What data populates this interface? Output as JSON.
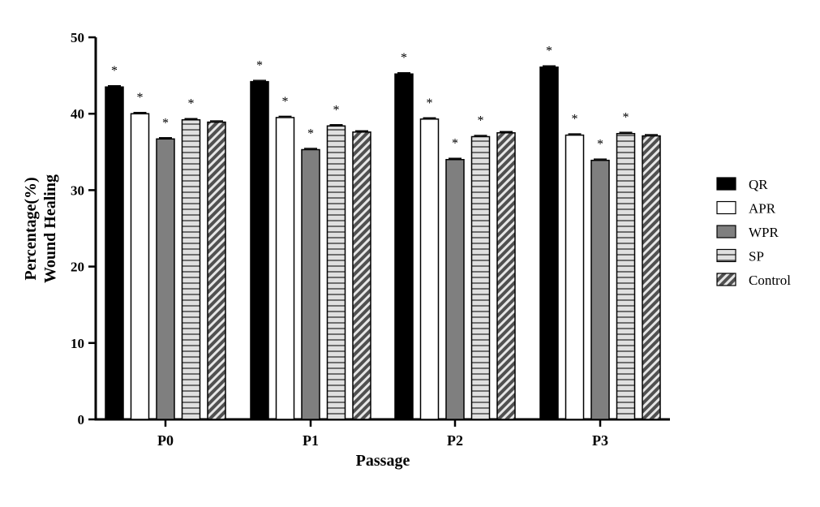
{
  "chart_data": {
    "type": "bar",
    "xlabel": "Passage",
    "ylabel_lines": [
      "Percentage(%)",
      "Wound Healing"
    ],
    "ylim": [
      0,
      50
    ],
    "yticks": [
      0,
      10,
      20,
      30,
      40,
      50
    ],
    "categories": [
      "P0",
      "P1",
      "P2",
      "P3"
    ],
    "series": [
      {
        "name": "QR",
        "values": [
          43.5,
          44.2,
          45.2,
          46.1
        ],
        "significant": [
          true,
          true,
          true,
          true
        ],
        "fill": "#000000",
        "pattern": "solid"
      },
      {
        "name": "APR",
        "values": [
          40.0,
          39.5,
          39.3,
          37.2
        ],
        "significant": [
          true,
          true,
          true,
          true
        ],
        "fill": "#ffffff",
        "pattern": "solid"
      },
      {
        "name": "WPR",
        "values": [
          36.7,
          35.3,
          34.0,
          33.9
        ],
        "significant": [
          true,
          true,
          true,
          true
        ],
        "fill": "#7f7f7f",
        "pattern": "solid"
      },
      {
        "name": "SP",
        "values": [
          39.2,
          38.4,
          37.0,
          37.4
        ],
        "significant": [
          true,
          true,
          true,
          true
        ],
        "fill": "#d6d6d6",
        "pattern": "horizontal-lines"
      },
      {
        "name": "Control",
        "values": [
          38.9,
          37.6,
          37.5,
          37.1
        ],
        "significant": [
          false,
          false,
          false,
          false
        ],
        "fill": "#6e6e6e",
        "pattern": "diagonal-stripes"
      }
    ],
    "significance_marker": "*",
    "legend_position": "right",
    "grid": false
  }
}
